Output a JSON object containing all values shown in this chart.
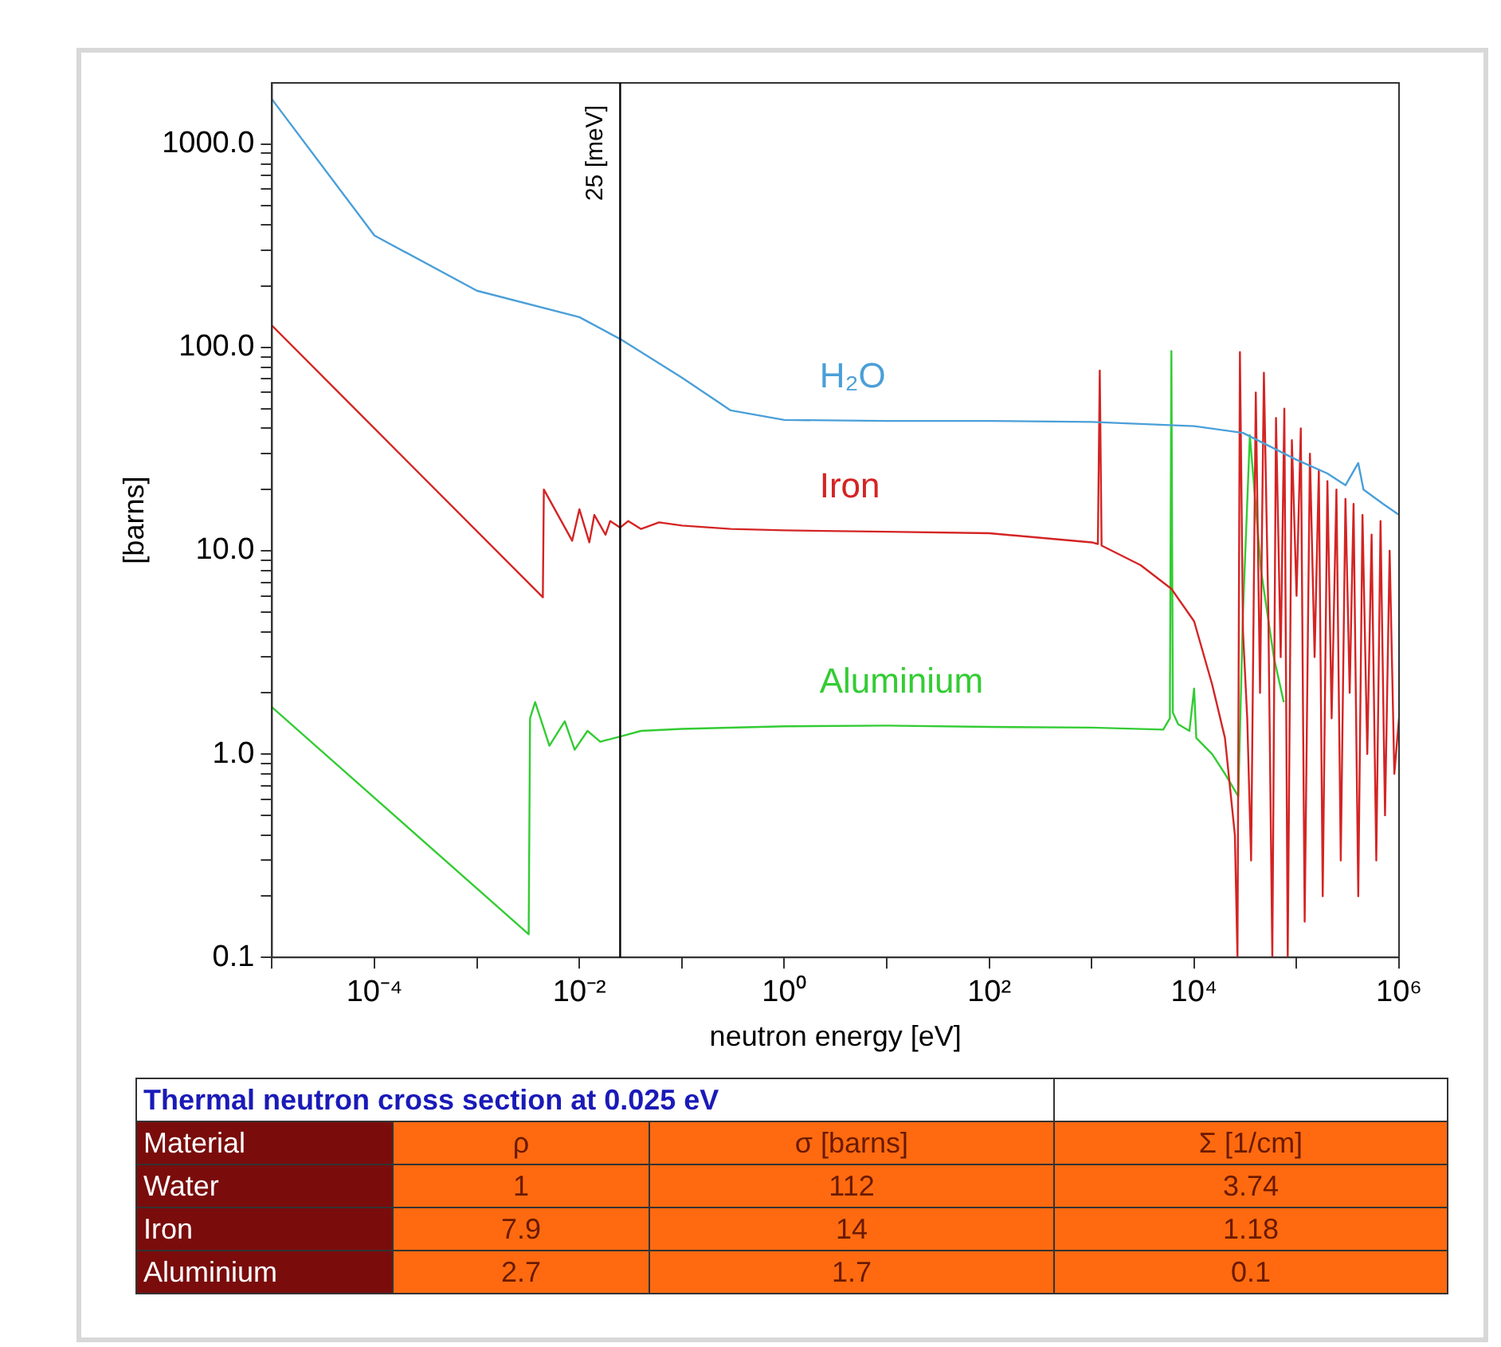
{
  "chart_data": {
    "type": "line",
    "xlabel": "neutron energy [eV]",
    "ylabel": "[barns]",
    "log": "xy",
    "legend": false,
    "grid": false,
    "xlim": [
      1e-05,
      1000000
    ],
    "ylim": [
      0.1,
      2000
    ],
    "xticks": [
      {
        "value": 1e-05,
        "label": null
      },
      {
        "value": 0.0001,
        "label": "10⁻⁴"
      },
      {
        "value": 0.001,
        "label": null
      },
      {
        "value": 0.01,
        "label": "10⁻²"
      },
      {
        "value": 0.1,
        "label": null
      },
      {
        "value": 1,
        "label": "10⁰"
      },
      {
        "value": 10,
        "label": null
      },
      {
        "value": 100,
        "label": "10²"
      },
      {
        "value": 1000,
        "label": null
      },
      {
        "value": 10000,
        "label": "10⁴"
      },
      {
        "value": 100000,
        "label": null
      },
      {
        "value": 1000000,
        "label": "10⁶"
      }
    ],
    "yticks": [
      0.1,
      {
        "value": 0.2,
        "label": null
      },
      {
        "value": 0.3,
        "label": null
      },
      {
        "value": 0.4,
        "label": null
      },
      {
        "value": 0.5,
        "label": null
      },
      {
        "value": 0.6,
        "label": null
      },
      {
        "value": 0.7,
        "label": null
      },
      {
        "value": 0.8,
        "label": null
      },
      {
        "value": 0.9,
        "label": null
      },
      {
        "value": 1,
        "label": "1.0"
      },
      {
        "value": 2,
        "label": null
      },
      {
        "value": 3,
        "label": null
      },
      {
        "value": 4,
        "label": null
      },
      {
        "value": 5,
        "label": null
      },
      {
        "value": 6,
        "label": null
      },
      {
        "value": 7,
        "label": null
      },
      {
        "value": 8,
        "label": null
      },
      {
        "value": 9,
        "label": null
      },
      {
        "value": 10,
        "label": "10.0"
      },
      {
        "value": 20,
        "label": null
      },
      {
        "value": 30,
        "label": null
      },
      {
        "value": 40,
        "label": null
      },
      {
        "value": 50,
        "label": null
      },
      {
        "value": 60,
        "label": null
      },
      {
        "value": 70,
        "label": null
      },
      {
        "value": 80,
        "label": null
      },
      {
        "value": 90,
        "label": null
      },
      {
        "value": 100,
        "label": "100.0"
      },
      {
        "value": 200,
        "label": null
      },
      {
        "value": 300,
        "label": null
      },
      {
        "value": 400,
        "label": null
      },
      {
        "value": 500,
        "label": null
      },
      {
        "value": 600,
        "label": null
      },
      {
        "value": 700,
        "label": null
      },
      {
        "value": 800,
        "label": null
      },
      {
        "value": 900,
        "label": null
      },
      {
        "value": 1000,
        "label": "1000.0"
      }
    ],
    "ref_lines": [
      {
        "axis": "x",
        "value": 0.025,
        "label": "25 [meV]",
        "color": "#000000"
      }
    ],
    "series": [
      {
        "name": "H₂O",
        "color": "#4a9fd8",
        "x": [
          1e-05,
          0.0001,
          0.001,
          0.01,
          0.025,
          0.1,
          0.3,
          1,
          10,
          100,
          1000,
          10000,
          30000,
          100000,
          200000,
          300000,
          400000,
          450000,
          700000,
          1000000
        ],
        "values": [
          1660,
          355,
          190,
          141,
          110,
          71,
          49,
          44,
          43.5,
          43.5,
          43,
          41,
          38,
          28,
          24,
          21,
          27,
          20,
          17,
          15
        ]
      },
      {
        "name": "Iron",
        "color": "#d42424",
        "x": [
          1e-05,
          0.0044,
          0.0045,
          0.0085,
          0.01,
          0.0125,
          0.014,
          0.018,
          0.02,
          0.025,
          0.03,
          0.04,
          0.06,
          0.1,
          0.3,
          1,
          10,
          100,
          1000,
          1150,
          1200,
          1250,
          3000,
          6000,
          10000,
          15000,
          20000,
          25000,
          26500,
          28000,
          30000,
          33000,
          36000,
          40000,
          44000,
          48000,
          53000,
          58000,
          63000,
          70000,
          76000,
          82000,
          90000,
          100000,
          110000,
          120000,
          135000,
          150000,
          165000,
          180000,
          200000,
          220000,
          245000,
          270000,
          300000,
          330000,
          360000,
          400000,
          440000,
          490000,
          540000,
          600000,
          660000,
          730000,
          810000,
          900000,
          1000000
        ],
        "values": [
          128,
          5.9,
          20,
          11.2,
          16,
          11,
          15,
          12,
          14,
          13,
          14,
          12.8,
          13.8,
          13.3,
          12.8,
          12.6,
          12.4,
          12.2,
          11,
          10.8,
          77,
          10.6,
          8.5,
          6.5,
          4.5,
          2.2,
          1.2,
          0.4,
          0.1,
          95,
          4,
          1.5,
          0.3,
          60,
          2,
          75,
          5,
          0.1,
          45,
          3,
          50,
          0.1,
          35,
          6,
          40,
          0.15,
          30,
          3,
          25,
          0.2,
          22,
          1.5,
          20,
          0.3,
          18,
          2,
          17,
          0.2,
          15,
          1,
          12,
          0.3,
          14,
          0.5,
          10,
          0.8,
          1.5
        ]
      },
      {
        "name": "Aluminium",
        "color": "#33cc33",
        "x": [
          1e-05,
          0.0032,
          0.0033,
          0.0037,
          0.0051,
          0.0072,
          0.009,
          0.012,
          0.016,
          0.025,
          0.04,
          0.1,
          1,
          10,
          100,
          1000,
          5000,
          5800,
          6000,
          6200,
          7000,
          9000,
          10000,
          10500,
          15000,
          20000,
          27000,
          30000,
          35000,
          45000,
          60000,
          75000
        ],
        "values": [
          1.7,
          0.13,
          1.5,
          1.8,
          1.1,
          1.45,
          1.05,
          1.3,
          1.15,
          1.22,
          1.3,
          1.33,
          1.37,
          1.38,
          1.36,
          1.35,
          1.32,
          1.5,
          96,
          1.6,
          1.4,
          1.3,
          2.1,
          1.2,
          1,
          0.8,
          0.62,
          5,
          37,
          8,
          3,
          1.8
        ]
      }
    ],
    "annotations": [
      "Thermal neutron cross section at 0.025 eV",
      "Material",
      "ρ",
      "σ [barns]",
      "Σ [1/cm]",
      "Water",
      "1",
      "112",
      "3.74",
      "Iron",
      "7.9",
      "14",
      "1.18",
      "Aluminium",
      "2.7",
      "1.7",
      "0.1"
    ]
  }
}
